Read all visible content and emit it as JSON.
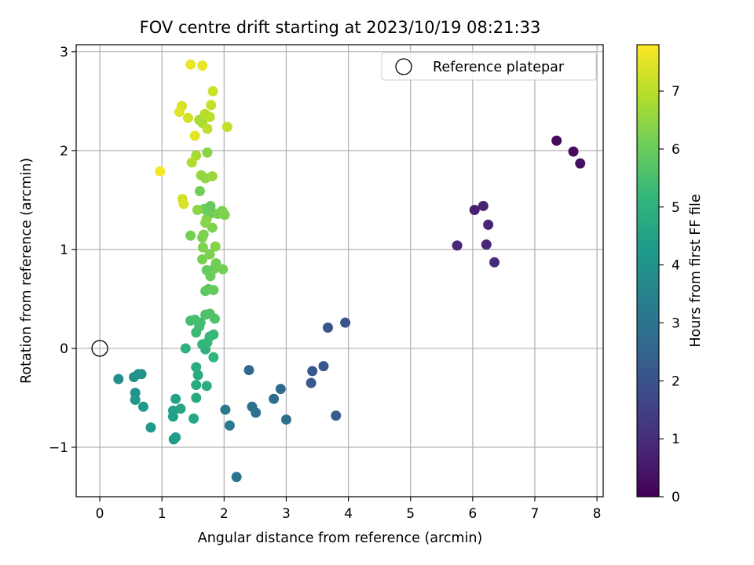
{
  "chart_data": {
    "type": "scatter",
    "title": "FOV centre drift starting at 2023/10/19 08:21:33",
    "xlabel": "Angular distance from reference (arcmin)",
    "ylabel": "Rotation from reference (arcmin)",
    "xlim": [
      -0.38,
      8.1
    ],
    "ylim": [
      -1.5,
      3.07
    ],
    "xticks": [
      0,
      1,
      2,
      3,
      4,
      5,
      6,
      7,
      8
    ],
    "xtick_labels": [
      "0",
      "1",
      "2",
      "3",
      "4",
      "5",
      "6",
      "7",
      "8"
    ],
    "yticks": [
      -1,
      0,
      1,
      2,
      3
    ],
    "ytick_labels": [
      "−1",
      "0",
      "1",
      "2",
      "3"
    ],
    "grid": true,
    "legend": {
      "position": "top-right",
      "entries": [
        "Reference platepar"
      ]
    },
    "reference_point": {
      "x": 0,
      "y": 0,
      "marker": "open-circle"
    },
    "colorbar": {
      "label": "Hours from first FF file",
      "range": [
        0,
        7.8
      ],
      "ticks": [
        0,
        1,
        2,
        3,
        4,
        5,
        6,
        7
      ],
      "tick_labels": [
        "0",
        "1",
        "2",
        "3",
        "4",
        "5",
        "6",
        "7"
      ],
      "colormap": "viridis"
    },
    "points": [
      [
        7.35,
        2.1,
        0.15
      ],
      [
        7.62,
        1.99,
        0.25
      ],
      [
        7.73,
        1.87,
        0.35
      ],
      [
        6.03,
        1.4,
        0.7
      ],
      [
        6.17,
        1.44,
        0.75
      ],
      [
        6.25,
        1.25,
        0.8
      ],
      [
        6.22,
        1.05,
        0.85
      ],
      [
        5.75,
        1.04,
        0.9
      ],
      [
        6.35,
        0.87,
        0.95
      ],
      [
        3.95,
        0.26,
        2.0
      ],
      [
        3.67,
        0.21,
        2.05
      ],
      [
        3.6,
        -0.18,
        2.1
      ],
      [
        3.42,
        -0.23,
        2.15
      ],
      [
        3.4,
        -0.35,
        2.2
      ],
      [
        3.8,
        -0.68,
        2.25
      ],
      [
        2.4,
        -0.22,
        2.6
      ],
      [
        2.91,
        -0.41,
        2.7
      ],
      [
        2.8,
        -0.51,
        2.75
      ],
      [
        2.45,
        -0.59,
        2.8
      ],
      [
        2.51,
        -0.65,
        2.85
      ],
      [
        3.0,
        -0.72,
        2.9
      ],
      [
        2.02,
        -0.62,
        3.1
      ],
      [
        2.09,
        -0.78,
        3.15
      ],
      [
        2.2,
        -1.3,
        3.0
      ],
      [
        0.3,
        -0.31,
        3.8
      ],
      [
        0.55,
        -0.29,
        3.9
      ],
      [
        0.62,
        -0.26,
        3.95
      ],
      [
        0.67,
        -0.26,
        4.0
      ],
      [
        0.57,
        -0.45,
        4.05
      ],
      [
        0.57,
        -0.52,
        4.1
      ],
      [
        0.7,
        -0.59,
        4.15
      ],
      [
        0.82,
        -0.8,
        4.2
      ],
      [
        1.19,
        -0.92,
        4.3
      ],
      [
        1.22,
        -0.9,
        4.35
      ],
      [
        1.18,
        -0.69,
        4.4
      ],
      [
        1.18,
        -0.63,
        4.45
      ],
      [
        1.22,
        -0.51,
        4.5
      ],
      [
        1.3,
        -0.61,
        4.55
      ],
      [
        1.51,
        -0.71,
        4.65
      ],
      [
        1.55,
        -0.5,
        4.7
      ],
      [
        1.55,
        -0.37,
        4.75
      ],
      [
        1.58,
        -0.27,
        4.8
      ],
      [
        1.55,
        -0.19,
        4.85
      ],
      [
        1.72,
        -0.38,
        4.9
      ],
      [
        1.38,
        0.0,
        4.95
      ],
      [
        1.7,
        -0.01,
        5.0
      ],
      [
        1.83,
        -0.09,
        5.05
      ],
      [
        1.65,
        0.04,
        5.1
      ],
      [
        1.73,
        0.06,
        5.15
      ],
      [
        1.77,
        0.12,
        5.2
      ],
      [
        1.83,
        0.14,
        5.25
      ],
      [
        1.55,
        0.16,
        5.3
      ],
      [
        1.6,
        0.22,
        5.35
      ],
      [
        1.62,
        0.26,
        5.4
      ],
      [
        1.46,
        0.28,
        5.45
      ],
      [
        1.53,
        0.29,
        5.5
      ],
      [
        1.7,
        0.34,
        5.55
      ],
      [
        1.77,
        0.35,
        5.6
      ],
      [
        1.85,
        0.3,
        5.65
      ],
      [
        1.7,
        0.58,
        5.8
      ],
      [
        1.75,
        0.6,
        5.85
      ],
      [
        1.83,
        0.59,
        5.9
      ],
      [
        1.72,
        0.79,
        5.95
      ],
      [
        1.78,
        0.73,
        6.0
      ],
      [
        1.83,
        0.8,
        6.05
      ],
      [
        1.87,
        0.86,
        6.1
      ],
      [
        1.98,
        0.8,
        6.15
      ],
      [
        1.65,
        0.9,
        6.2
      ],
      [
        1.77,
        0.95,
        6.25
      ],
      [
        1.66,
        1.02,
        6.3
      ],
      [
        1.86,
        1.03,
        6.35
      ],
      [
        1.65,
        1.12,
        6.2
      ],
      [
        1.67,
        1.15,
        6.25
      ],
      [
        1.46,
        1.14,
        6.15
      ],
      [
        1.81,
        1.22,
        6.3
      ],
      [
        1.7,
        1.27,
        6.35
      ],
      [
        1.72,
        1.31,
        6.4
      ],
      [
        1.82,
        1.37,
        6.0
      ],
      [
        1.73,
        1.39,
        6.1
      ],
      [
        1.68,
        1.41,
        6.05
      ],
      [
        1.78,
        1.44,
        5.95
      ],
      [
        1.9,
        1.36,
        6.2
      ],
      [
        1.97,
        1.39,
        6.25
      ],
      [
        2.01,
        1.35,
        6.3
      ],
      [
        1.57,
        1.4,
        6.45
      ],
      [
        1.61,
        1.59,
        6.1
      ],
      [
        1.7,
        1.72,
        6.5
      ],
      [
        1.63,
        1.75,
        6.55
      ],
      [
        1.81,
        1.74,
        6.6
      ],
      [
        1.73,
        1.98,
        6.4
      ],
      [
        1.55,
        1.95,
        6.75
      ],
      [
        1.48,
        1.88,
        6.9
      ],
      [
        0.97,
        1.79,
        7.7
      ],
      [
        1.33,
        1.51,
        7.25
      ],
      [
        1.35,
        1.46,
        7.4
      ],
      [
        1.6,
        2.31,
        6.8
      ],
      [
        1.65,
        2.28,
        6.85
      ],
      [
        1.69,
        2.37,
        6.95
      ],
      [
        1.77,
        2.34,
        7.0
      ],
      [
        1.73,
        2.22,
        7.05
      ],
      [
        2.05,
        2.24,
        7.1
      ],
      [
        1.79,
        2.46,
        7.15
      ],
      [
        1.82,
        2.6,
        7.2
      ],
      [
        1.42,
        2.33,
        7.3
      ],
      [
        1.32,
        2.45,
        7.35
      ],
      [
        1.28,
        2.39,
        7.45
      ],
      [
        1.53,
        2.15,
        7.5
      ],
      [
        1.46,
        2.87,
        7.6
      ],
      [
        1.65,
        2.86,
        7.55
      ]
    ]
  }
}
